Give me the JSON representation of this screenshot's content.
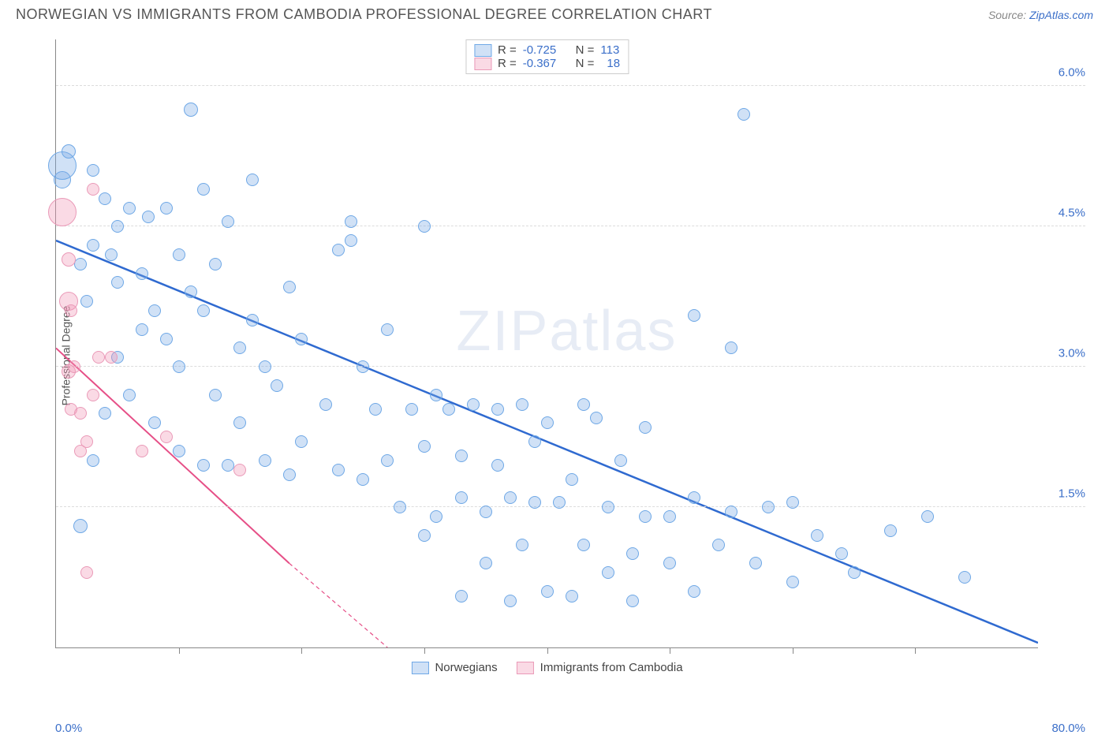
{
  "header": {
    "title": "NORWEGIAN VS IMMIGRANTS FROM CAMBODIA PROFESSIONAL DEGREE CORRELATION CHART",
    "source_prefix": "Source: ",
    "source_name": "ZipAtlas.com"
  },
  "ylabel": "Professional Degree",
  "watermark": {
    "a": "ZIP",
    "b": "atlas"
  },
  "chart": {
    "type": "scatter",
    "xlim": [
      0,
      80
    ],
    "ylim": [
      0,
      6.5
    ],
    "xticks_minor": [
      10,
      20,
      30,
      40,
      50,
      60,
      70
    ],
    "xtick_labels": {
      "left": "0.0%",
      "right": "80.0%"
    },
    "yticks": [
      1.5,
      3.0,
      4.5,
      6.0
    ],
    "ytick_labels": [
      "1.5%",
      "3.0%",
      "4.5%",
      "6.0%"
    ],
    "grid_color": "#dcdcdc",
    "axis_color": "#888888",
    "background_color": "#ffffff",
    "label_fontsize": 14,
    "tick_fontsize": 15,
    "tick_color": "#3b6fc9"
  },
  "series": [
    {
      "key": "norwegians",
      "label": "Norwegians",
      "color_fill": "rgba(120,170,230,0.35)",
      "color_stroke": "#6fa8e6",
      "trend_color": "#2f6ad0",
      "trend_width": 2.5,
      "R": "-0.725",
      "N": "113",
      "trend": {
        "x1": 0,
        "y1": 4.35,
        "x2": 80,
        "y2": 0.05
      },
      "points": [
        {
          "x": 0.5,
          "y": 5.0,
          "r": 11
        },
        {
          "x": 0.5,
          "y": 5.15,
          "r": 18
        },
        {
          "x": 1,
          "y": 5.3,
          "r": 9
        },
        {
          "x": 2,
          "y": 4.1,
          "r": 8
        },
        {
          "x": 2,
          "y": 1.3,
          "r": 9
        },
        {
          "x": 2.5,
          "y": 3.7,
          "r": 8
        },
        {
          "x": 3,
          "y": 5.1,
          "r": 8
        },
        {
          "x": 3,
          "y": 4.3,
          "r": 8
        },
        {
          "x": 3,
          "y": 2.0,
          "r": 8
        },
        {
          "x": 4,
          "y": 4.8,
          "r": 8
        },
        {
          "x": 4,
          "y": 2.5,
          "r": 8
        },
        {
          "x": 4.5,
          "y": 4.2,
          "r": 8
        },
        {
          "x": 5,
          "y": 3.9,
          "r": 8
        },
        {
          "x": 5,
          "y": 4.5,
          "r": 8
        },
        {
          "x": 5,
          "y": 3.1,
          "r": 8
        },
        {
          "x": 6,
          "y": 4.7,
          "r": 8
        },
        {
          "x": 6,
          "y": 2.7,
          "r": 8
        },
        {
          "x": 7,
          "y": 4.0,
          "r": 8
        },
        {
          "x": 7,
          "y": 3.4,
          "r": 8
        },
        {
          "x": 7.5,
          "y": 4.6,
          "r": 8
        },
        {
          "x": 8,
          "y": 3.6,
          "r": 8
        },
        {
          "x": 8,
          "y": 2.4,
          "r": 8
        },
        {
          "x": 9,
          "y": 4.7,
          "r": 8
        },
        {
          "x": 9,
          "y": 3.3,
          "r": 8
        },
        {
          "x": 10,
          "y": 4.2,
          "r": 8
        },
        {
          "x": 10,
          "y": 3.0,
          "r": 8
        },
        {
          "x": 10,
          "y": 2.1,
          "r": 8
        },
        {
          "x": 11,
          "y": 5.75,
          "r": 9
        },
        {
          "x": 11,
          "y": 3.8,
          "r": 8
        },
        {
          "x": 12,
          "y": 4.9,
          "r": 8
        },
        {
          "x": 12,
          "y": 3.6,
          "r": 8
        },
        {
          "x": 12,
          "y": 1.95,
          "r": 8
        },
        {
          "x": 13,
          "y": 4.1,
          "r": 8
        },
        {
          "x": 13,
          "y": 2.7,
          "r": 8
        },
        {
          "x": 14,
          "y": 4.55,
          "r": 8
        },
        {
          "x": 14,
          "y": 1.95,
          "r": 8
        },
        {
          "x": 15,
          "y": 3.2,
          "r": 8
        },
        {
          "x": 15,
          "y": 2.4,
          "r": 8
        },
        {
          "x": 16,
          "y": 5.0,
          "r": 8
        },
        {
          "x": 16,
          "y": 3.5,
          "r": 8
        },
        {
          "x": 17,
          "y": 2.0,
          "r": 8
        },
        {
          "x": 17,
          "y": 3.0,
          "r": 8
        },
        {
          "x": 18,
          "y": 2.8,
          "r": 8
        },
        {
          "x": 19,
          "y": 3.85,
          "r": 8
        },
        {
          "x": 19,
          "y": 1.85,
          "r": 8
        },
        {
          "x": 20,
          "y": 3.3,
          "r": 8
        },
        {
          "x": 20,
          "y": 2.2,
          "r": 8
        },
        {
          "x": 22,
          "y": 2.6,
          "r": 8
        },
        {
          "x": 23,
          "y": 4.25,
          "r": 8
        },
        {
          "x": 23,
          "y": 1.9,
          "r": 8
        },
        {
          "x": 24,
          "y": 4.55,
          "r": 8
        },
        {
          "x": 24,
          "y": 4.35,
          "r": 8
        },
        {
          "x": 25,
          "y": 3.0,
          "r": 8
        },
        {
          "x": 25,
          "y": 1.8,
          "r": 8
        },
        {
          "x": 26,
          "y": 2.55,
          "r": 8
        },
        {
          "x": 27,
          "y": 3.4,
          "r": 8
        },
        {
          "x": 27,
          "y": 2.0,
          "r": 8
        },
        {
          "x": 28,
          "y": 1.5,
          "r": 8
        },
        {
          "x": 29,
          "y": 2.55,
          "r": 8
        },
        {
          "x": 30,
          "y": 4.5,
          "r": 8
        },
        {
          "x": 30,
          "y": 2.15,
          "r": 8
        },
        {
          "x": 30,
          "y": 1.2,
          "r": 8
        },
        {
          "x": 31,
          "y": 2.7,
          "r": 8
        },
        {
          "x": 31,
          "y": 1.4,
          "r": 8
        },
        {
          "x": 32,
          "y": 2.55,
          "r": 8
        },
        {
          "x": 33,
          "y": 2.05,
          "r": 8
        },
        {
          "x": 33,
          "y": 1.6,
          "r": 8
        },
        {
          "x": 33,
          "y": 0.55,
          "r": 8
        },
        {
          "x": 34,
          "y": 2.6,
          "r": 8
        },
        {
          "x": 35,
          "y": 1.45,
          "r": 8
        },
        {
          "x": 35,
          "y": 0.9,
          "r": 8
        },
        {
          "x": 36,
          "y": 2.55,
          "r": 8
        },
        {
          "x": 36,
          "y": 1.95,
          "r": 8
        },
        {
          "x": 37,
          "y": 1.6,
          "r": 8
        },
        {
          "x": 37,
          "y": 0.5,
          "r": 8
        },
        {
          "x": 38,
          "y": 2.6,
          "r": 8
        },
        {
          "x": 38,
          "y": 1.1,
          "r": 8
        },
        {
          "x": 39,
          "y": 2.2,
          "r": 8
        },
        {
          "x": 39,
          "y": 1.55,
          "r": 8
        },
        {
          "x": 40,
          "y": 2.4,
          "r": 8
        },
        {
          "x": 40,
          "y": 0.6,
          "r": 8
        },
        {
          "x": 41,
          "y": 1.55,
          "r": 8
        },
        {
          "x": 42,
          "y": 1.8,
          "r": 8
        },
        {
          "x": 42,
          "y": 0.55,
          "r": 8
        },
        {
          "x": 43,
          "y": 2.6,
          "r": 8
        },
        {
          "x": 43,
          "y": 1.1,
          "r": 8
        },
        {
          "x": 44,
          "y": 2.45,
          "r": 8
        },
        {
          "x": 45,
          "y": 1.5,
          "r": 8
        },
        {
          "x": 45,
          "y": 0.8,
          "r": 8
        },
        {
          "x": 46,
          "y": 2.0,
          "r": 8
        },
        {
          "x": 47,
          "y": 1.0,
          "r": 8
        },
        {
          "x": 47,
          "y": 0.5,
          "r": 8
        },
        {
          "x": 48,
          "y": 2.35,
          "r": 8
        },
        {
          "x": 48,
          "y": 1.4,
          "r": 8
        },
        {
          "x": 50,
          "y": 1.4,
          "r": 8
        },
        {
          "x": 50,
          "y": 0.9,
          "r": 8
        },
        {
          "x": 52,
          "y": 1.6,
          "r": 8
        },
        {
          "x": 52,
          "y": 3.55,
          "r": 8
        },
        {
          "x": 52,
          "y": 0.6,
          "r": 8
        },
        {
          "x": 54,
          "y": 1.1,
          "r": 8
        },
        {
          "x": 55,
          "y": 1.45,
          "r": 8
        },
        {
          "x": 55,
          "y": 3.2,
          "r": 8
        },
        {
          "x": 56,
          "y": 5.7,
          "r": 8
        },
        {
          "x": 57,
          "y": 0.9,
          "r": 8
        },
        {
          "x": 58,
          "y": 1.5,
          "r": 8
        },
        {
          "x": 60,
          "y": 1.55,
          "r": 8
        },
        {
          "x": 60,
          "y": 0.7,
          "r": 8
        },
        {
          "x": 62,
          "y": 1.2,
          "r": 8
        },
        {
          "x": 64,
          "y": 1.0,
          "r": 8
        },
        {
          "x": 65,
          "y": 0.8,
          "r": 8
        },
        {
          "x": 68,
          "y": 1.25,
          "r": 8
        },
        {
          "x": 71,
          "y": 1.4,
          "r": 8
        },
        {
          "x": 74,
          "y": 0.75,
          "r": 8
        }
      ]
    },
    {
      "key": "cambodia",
      "label": "Immigrants from Cambodia",
      "color_fill": "rgba(240,150,180,0.35)",
      "color_stroke": "#ea9ab8",
      "trend_color": "#e64f87",
      "trend_width": 2,
      "R": "-0.367",
      "N": "18",
      "trend": {
        "x1": 0,
        "y1": 3.2,
        "x2": 19,
        "y2": 0.9
      },
      "trend_dash": {
        "x1": 19,
        "y1": 0.9,
        "x2": 27,
        "y2": 0.0
      },
      "points": [
        {
          "x": 0.5,
          "y": 4.65,
          "r": 18
        },
        {
          "x": 1,
          "y": 4.15,
          "r": 9
        },
        {
          "x": 1,
          "y": 3.7,
          "r": 12
        },
        {
          "x": 1.2,
          "y": 3.6,
          "r": 8
        },
        {
          "x": 1,
          "y": 2.95,
          "r": 9
        },
        {
          "x": 1.5,
          "y": 3.0,
          "r": 8
        },
        {
          "x": 1.2,
          "y": 2.55,
          "r": 8
        },
        {
          "x": 2,
          "y": 2.5,
          "r": 8
        },
        {
          "x": 2,
          "y": 2.1,
          "r": 8
        },
        {
          "x": 2.5,
          "y": 2.2,
          "r": 8
        },
        {
          "x": 2.5,
          "y": 0.8,
          "r": 8
        },
        {
          "x": 3,
          "y": 4.9,
          "r": 8
        },
        {
          "x": 3,
          "y": 2.7,
          "r": 8
        },
        {
          "x": 3.5,
          "y": 3.1,
          "r": 8
        },
        {
          "x": 4.5,
          "y": 3.1,
          "r": 8
        },
        {
          "x": 7,
          "y": 2.1,
          "r": 8
        },
        {
          "x": 9,
          "y": 2.25,
          "r": 8
        },
        {
          "x": 15,
          "y": 1.9,
          "r": 8
        }
      ]
    }
  ],
  "legend_top": {
    "r_label": "R =",
    "n_label": "N ="
  }
}
